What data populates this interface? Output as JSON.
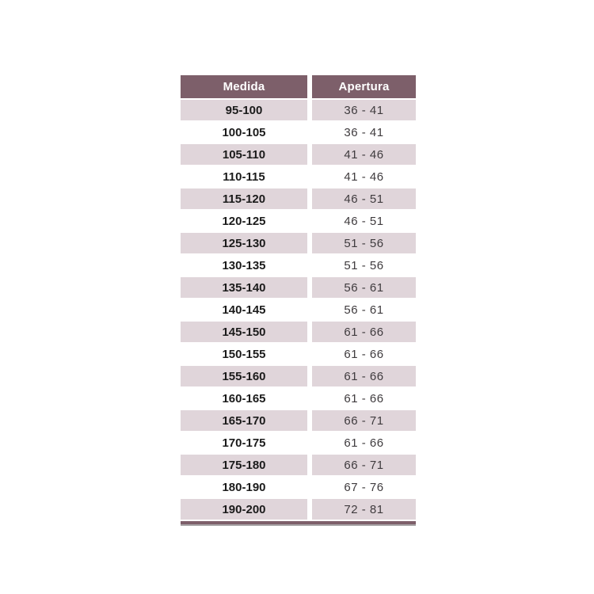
{
  "colors": {
    "header-bg": "#7d5f6a",
    "header-text": "#ffffff",
    "row-pink": "#e0d5da",
    "row-white": "#ffffff",
    "medida-text": "#1b1b1b",
    "apertura-text": "#3f3b3e",
    "border-dark": "#7d5f6a",
    "border-shadow": "#a7a3a5"
  },
  "chart_data": {
    "type": "table",
    "title": "",
    "columns": [
      "Medida",
      "Apertura"
    ],
    "rows": [
      [
        "95-100",
        "36 - 41"
      ],
      [
        "100-105",
        "36 - 41"
      ],
      [
        "105-110",
        "41 - 46"
      ],
      [
        "110-115",
        "41 - 46"
      ],
      [
        "115-120",
        "46 - 51"
      ],
      [
        "120-125",
        "46 - 51"
      ],
      [
        "125-130",
        "51 - 56"
      ],
      [
        "130-135",
        "51 - 56"
      ],
      [
        "135-140",
        "56 - 61"
      ],
      [
        "140-145",
        "56 - 61"
      ],
      [
        "145-150",
        "61 - 66"
      ],
      [
        "150-155",
        "61 - 66"
      ],
      [
        "155-160",
        "61 - 66"
      ],
      [
        "160-165",
        "61 - 66"
      ],
      [
        "165-170",
        "66 - 71"
      ],
      [
        "170-175",
        "61 - 66"
      ],
      [
        "175-180",
        "66 - 71"
      ],
      [
        "180-190",
        "67 - 76"
      ],
      [
        "190-200",
        "72 - 81"
      ]
    ]
  }
}
